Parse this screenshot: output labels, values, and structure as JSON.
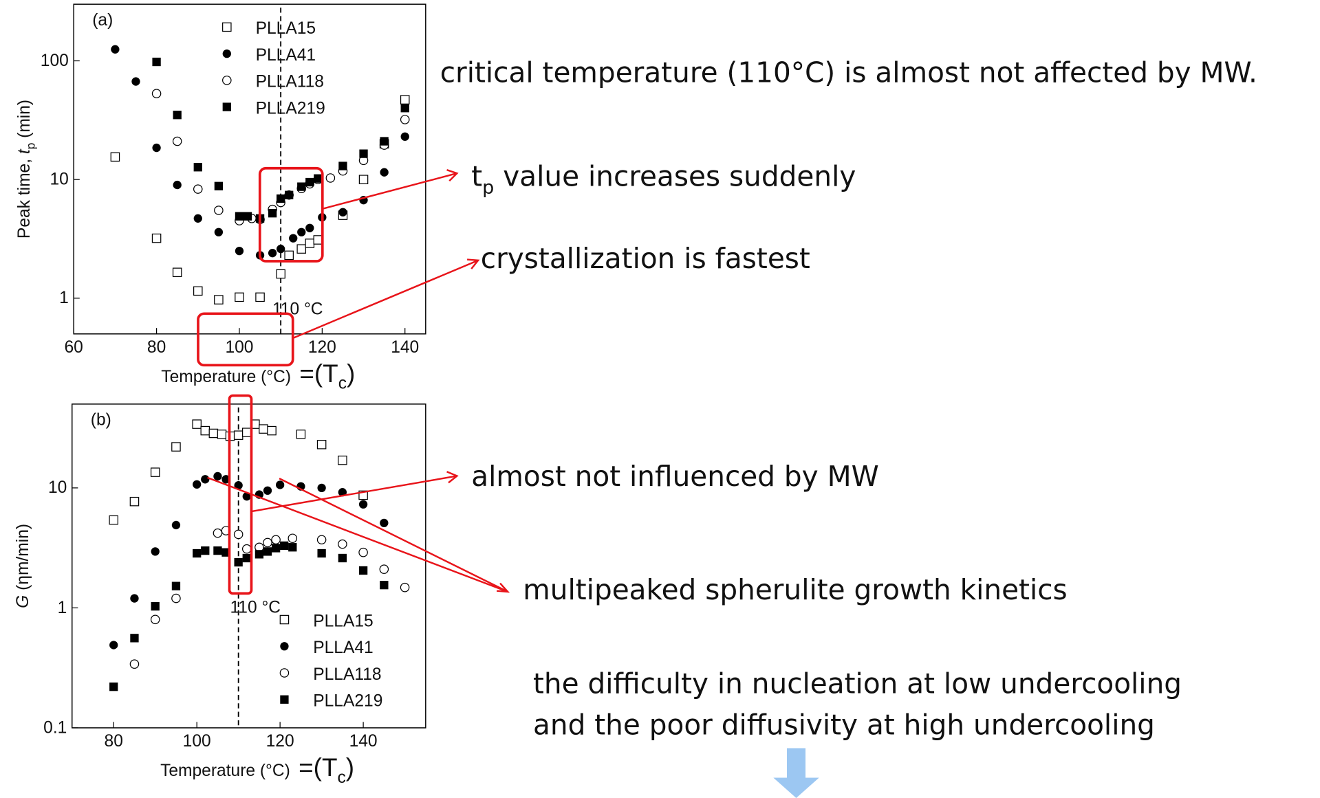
{
  "chart_data": [
    {
      "type": "scatter",
      "panel": "(a)",
      "ylabel": [
        "Peak time, ",
        "t",
        "p",
        " (min)"
      ],
      "xlabel": "Temperature (°C)",
      "xlabel_note": [
        "=(T",
        "c",
        ")"
      ],
      "xlim": [
        60,
        145
      ],
      "ylim": [
        0.5,
        300
      ],
      "ylog": true,
      "xticks": [
        60,
        80,
        100,
        120,
        140
      ],
      "yticks": [
        1,
        10,
        100
      ],
      "legend": "top",
      "vline": {
        "x": 110,
        "label": "110 °C"
      },
      "series": [
        {
          "name": "PLLA15",
          "marker": "open-square",
          "color": "#000000",
          "x": [
            70,
            80,
            85,
            90,
            95,
            100,
            105,
            110,
            112,
            115,
            117,
            119,
            125,
            130,
            135,
            140
          ],
          "values": [
            15.5,
            3.2,
            1.65,
            1.15,
            0.97,
            1.02,
            1.02,
            1.6,
            2.3,
            2.6,
            2.9,
            3.1,
            5,
            10,
            20,
            47
          ]
        },
        {
          "name": "PLLA41",
          "marker": "filled-circle",
          "color": "#000000",
          "x": [
            70,
            75,
            80,
            85,
            90,
            95,
            100,
            105,
            108,
            110,
            113,
            115,
            117,
            120,
            125,
            130,
            135,
            140
          ],
          "values": [
            125,
            67,
            18.5,
            9,
            4.7,
            3.6,
            2.5,
            2.3,
            2.4,
            2.6,
            3.2,
            3.6,
            3.9,
            4.8,
            5.3,
            6.7,
            11.5,
            23
          ]
        },
        {
          "name": "PLLA118",
          "marker": "open-circle",
          "color": "#000000",
          "x": [
            80,
            85,
            90,
            95,
            100,
            103,
            105,
            108,
            110,
            112,
            115,
            117,
            119,
            122,
            125,
            130,
            135,
            140
          ],
          "values": [
            53,
            21,
            8.3,
            5.5,
            4.5,
            4.7,
            4.6,
            5.6,
            6.4,
            7.4,
            8.4,
            9.2,
            10,
            10.3,
            11.8,
            14.5,
            19.5,
            32
          ]
        },
        {
          "name": "PLLA219",
          "marker": "filled-square",
          "color": "#000000",
          "x": [
            80,
            85,
            90,
            95,
            100,
            102,
            105,
            108,
            110,
            112,
            115,
            117,
            119,
            125,
            130,
            135,
            140
          ],
          "values": [
            98,
            35,
            12.7,
            8.8,
            4.9,
            4.9,
            4.7,
            5.2,
            6.9,
            7.4,
            8.7,
            9.5,
            10.2,
            13,
            16.5,
            21,
            40
          ]
        }
      ]
    },
    {
      "type": "scatter",
      "panel": "(b)",
      "ylabel": [
        "G",
        " (ηm/min)"
      ],
      "xlabel": "Temperature (°C)",
      "xlabel_note": [
        "=(T",
        "c",
        ")"
      ],
      "xlim": [
        70,
        155
      ],
      "ylim": [
        0.1,
        50
      ],
      "ylog": true,
      "xticks": [
        80,
        100,
        120,
        140
      ],
      "yticks": [
        0.1,
        1,
        10
      ],
      "legend": "bottom-right",
      "vline": {
        "x": 110,
        "label": "110 °C"
      },
      "series": [
        {
          "name": "PLLA15",
          "marker": "open-square",
          "color": "#000000",
          "x": [
            80,
            85,
            90,
            95,
            100,
            102,
            104,
            106,
            108,
            110,
            112,
            114,
            116,
            118,
            125,
            130,
            135,
            140
          ],
          "values": [
            5.4,
            7.7,
            13.5,
            22,
            34,
            30,
            28.5,
            28,
            27,
            27.5,
            29,
            34,
            31,
            30,
            28,
            23,
            17,
            8.7
          ]
        },
        {
          "name": "PLLA41",
          "marker": "filled-circle",
          "color": "#000000",
          "x": [
            80,
            85,
            90,
            95,
            100,
            102,
            105,
            107,
            110,
            112,
            115,
            117,
            120,
            125,
            130,
            135,
            140,
            145
          ],
          "values": [
            0.49,
            1.2,
            2.95,
            4.9,
            10.7,
            11.8,
            12.5,
            11.8,
            10.5,
            8.5,
            8.8,
            9.5,
            10.6,
            10.3,
            10,
            9.2,
            7.3,
            5.1
          ]
        },
        {
          "name": "PLLA118",
          "marker": "open-circle",
          "color": "#000000",
          "x": [
            85,
            90,
            95,
            105,
            107,
            110,
            112,
            115,
            117,
            119,
            123,
            130,
            135,
            140,
            145,
            150
          ],
          "values": [
            0.34,
            0.8,
            1.2,
            4.2,
            4.4,
            4.1,
            3.1,
            3.2,
            3.5,
            3.7,
            3.8,
            3.7,
            3.4,
            2.9,
            2.1,
            1.48
          ]
        },
        {
          "name": "PLLA219",
          "marker": "filled-square",
          "color": "#000000",
          "x": [
            80,
            85,
            90,
            95,
            100,
            102,
            105,
            107,
            110,
            112,
            115,
            117,
            119,
            121,
            123,
            130,
            135,
            140,
            145
          ],
          "values": [
            0.22,
            0.56,
            1.03,
            1.52,
            2.85,
            3.0,
            3.0,
            2.9,
            2.4,
            2.6,
            2.8,
            2.95,
            3.15,
            3.3,
            3.2,
            2.85,
            2.6,
            2.05,
            1.55
          ]
        }
      ]
    }
  ],
  "notes": {
    "critical": "critical temperature (110°C) is almost not affected by MW.",
    "increase": [
      "t",
      "p",
      " value increases suddenly"
    ],
    "fastest": "crystallization is fastest",
    "influenced": "almost not influenced by MW",
    "multipeaked": "multipeaked spherulite growth kinetics",
    "difficulty": [
      "the difficulty in nucleation at low undercooling",
      "and the poor diffusivity at high undercooling"
    ]
  }
}
